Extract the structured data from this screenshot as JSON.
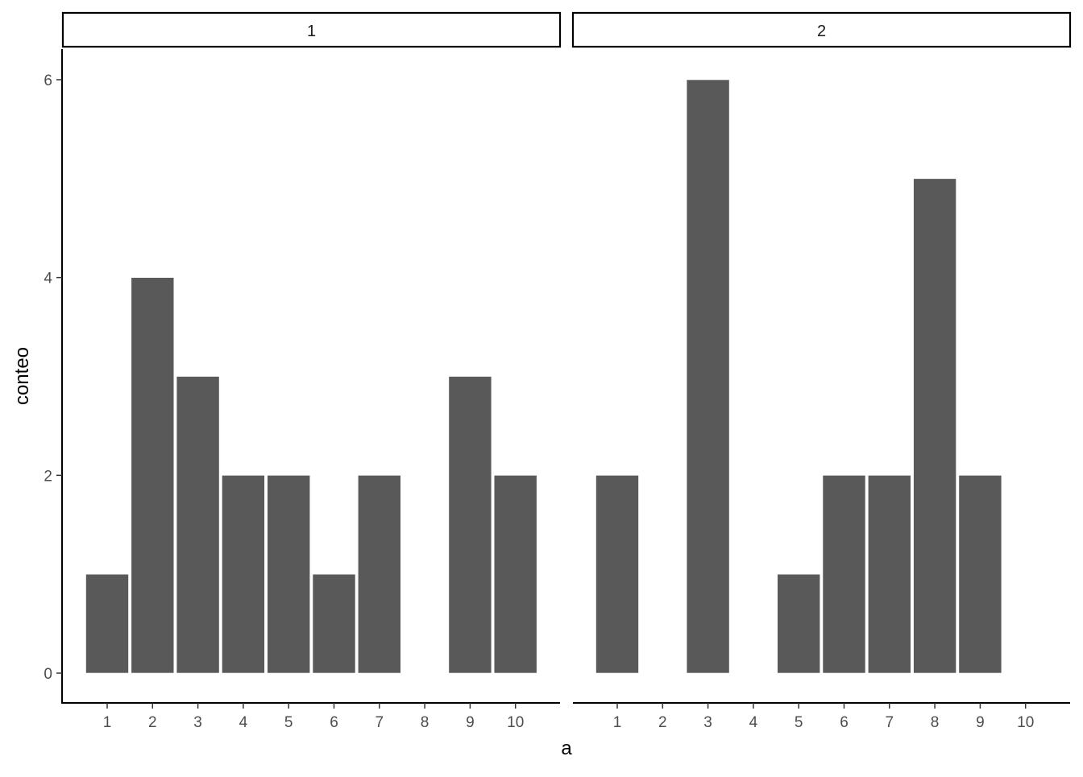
{
  "chart_data": {
    "type": "bar",
    "xlabel": "a",
    "ylabel": "conteo",
    "ylim": [
      0,
      6.3
    ],
    "yticks": [
      "0",
      "2",
      "4",
      "6"
    ],
    "xticks": [
      "1",
      "2",
      "3",
      "4",
      "5",
      "6",
      "7",
      "8",
      "9",
      "10"
    ],
    "bar_color": "#595959",
    "facets": [
      {
        "strip": "1",
        "bars": [
          {
            "x": 1,
            "value": 1
          },
          {
            "x": 2,
            "value": 4
          },
          {
            "x": 3,
            "value": 3
          },
          {
            "x": 4,
            "value": 2
          },
          {
            "x": 5,
            "value": 2
          },
          {
            "x": 6,
            "value": 1
          },
          {
            "x": 7,
            "value": 2
          },
          {
            "x": 9,
            "value": 3
          },
          {
            "x": 10,
            "value": 2
          }
        ]
      },
      {
        "strip": "2",
        "bars": [
          {
            "x": 1,
            "value": 2
          },
          {
            "x": 3,
            "value": 6
          },
          {
            "x": 5,
            "value": 1
          },
          {
            "x": 6,
            "value": 2
          },
          {
            "x": 7,
            "value": 2
          },
          {
            "x": 8,
            "value": 5
          },
          {
            "x": 9,
            "value": 2
          }
        ]
      }
    ]
  }
}
